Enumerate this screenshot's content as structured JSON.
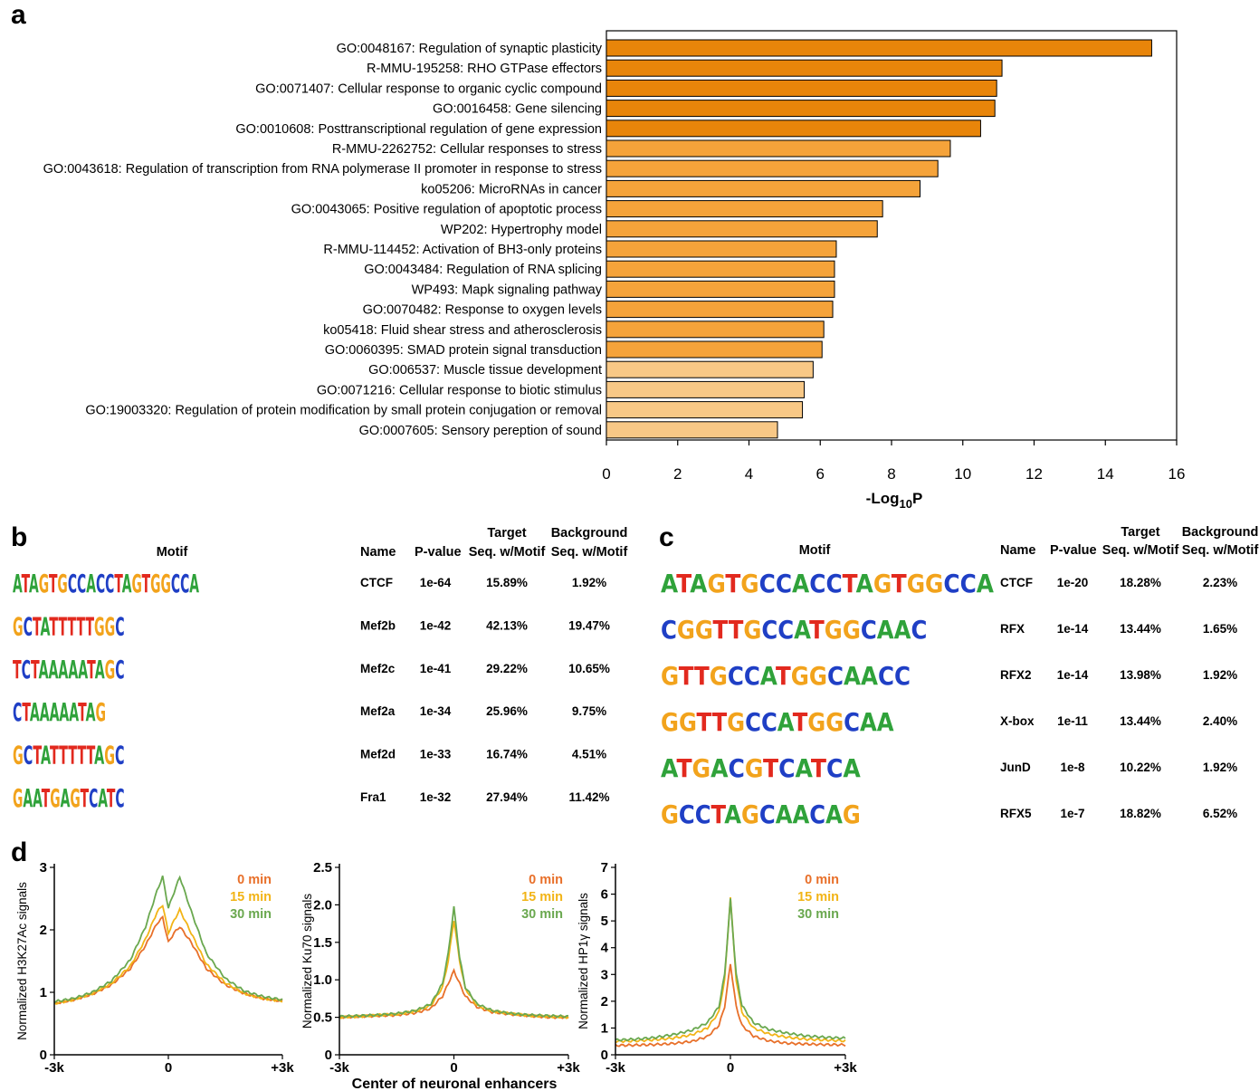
{
  "panel_a": {
    "letter": "a",
    "chart_data": {
      "type": "bar",
      "orientation": "horizontal",
      "xlabel": "-Log",
      "xlabel_sub": "10",
      "xlabel_tail": "P",
      "xlim": [
        0,
        16
      ],
      "xticks": [
        "0",
        "2",
        "4",
        "6",
        "8",
        "10",
        "12",
        "14",
        "16"
      ],
      "categories": [
        "GO:0048167: Regulation of synaptic plasticity",
        "R-MMU-195258: RHO GTPase effectors",
        "GO:0071407: Cellular response to organic cyclic compound",
        "GO:0016458: Gene silencing",
        "GO:0010608: Posttranscriptional regulation of gene expression",
        "R-MMU-2262752: Cellular responses to stress",
        "GO:0043618: Regulation of transcription from RNA polymerase II promoter in response to stress",
        "ko05206: MicroRNAs in cancer",
        "GO:0043065: Positive regulation of apoptotic process",
        "WP202: Hypertrophy model",
        "R-MMU-114452: Activation of BH3-only proteins",
        "GO:0043484: Regulation of RNA splicing",
        "WP493: Mapk signaling pathway",
        "GO:0070482: Response to oxygen levels",
        "ko05418: Fluid shear stress and atherosclerosis",
        "GO:0060395: SMAD protein signal transduction",
        "GO:006537: Muscle tissue development",
        "GO:0071216: Cellular response to biotic stimulus",
        "GO:19003320: Regulation of protein modification by small protein conjugation or removal",
        "GO:0007605: Sensory pereption of sound"
      ],
      "values": [
        15.3,
        11.1,
        10.95,
        10.9,
        10.5,
        9.65,
        9.3,
        8.8,
        7.75,
        7.6,
        6.45,
        6.4,
        6.4,
        6.35,
        6.1,
        6.05,
        5.8,
        5.55,
        5.5,
        4.8
      ],
      "colors": [
        "#E8850A",
        "#E8850A",
        "#E8850A",
        "#E8850A",
        "#E8850A",
        "#F5A33A",
        "#F5A33A",
        "#F5A33A",
        "#F5A33A",
        "#F5A33A",
        "#F5A33A",
        "#F5A33A",
        "#F5A33A",
        "#F5A33A",
        "#F5A33A",
        "#F5A33A",
        "#F8C886",
        "#F8C886",
        "#F8C886",
        "#F8C886"
      ]
    }
  },
  "panel_b": {
    "letter": "b",
    "headers": {
      "motif": "Motif",
      "name": "Name",
      "pvalue": "P-value",
      "target1": "Target",
      "target2": "Seq. w/Motif",
      "bg1": "Background",
      "bg2": "Seq. w/Motif"
    },
    "rows": [
      {
        "motif": "ATAGTGCCACCTAGTGGCCA",
        "name": "CTCF",
        "pvalue": "1e-64",
        "target": "15.89%",
        "background": "1.92%"
      },
      {
        "motif": "GCTATTTTTGGC",
        "name": "Mef2b",
        "pvalue": "1e-42",
        "target": "42.13%",
        "background": "19.47%"
      },
      {
        "motif": "TCTAAAAATAGC",
        "name": "Mef2c",
        "pvalue": "1e-41",
        "target": "29.22%",
        "background": "10.65%"
      },
      {
        "motif": "CTAAAAATAG",
        "name": "Mef2a",
        "pvalue": "1e-34",
        "target": "25.96%",
        "background": "9.75%"
      },
      {
        "motif": "GCTATTTTTAGC",
        "name": "Mef2d",
        "pvalue": "1e-33",
        "target": "16.74%",
        "background": "4.51%"
      },
      {
        "motif": "GAATGAGTCATC",
        "name": "Fra1",
        "pvalue": "1e-32",
        "target": "27.94%",
        "background": "11.42%"
      }
    ]
  },
  "panel_c": {
    "letter": "c",
    "headers": {
      "motif": "Motif",
      "name": "Name",
      "pvalue": "P-value",
      "target1": "Target",
      "target2": "Seq. w/Motif",
      "bg1": "Background",
      "bg2": "Seq. w/Motif"
    },
    "rows": [
      {
        "motif": "ATAGTGCCACCTAGTGGCCA",
        "name": "CTCF",
        "pvalue": "1e-20",
        "target": "18.28%",
        "background": "2.23%"
      },
      {
        "motif": "CGGTTGCCATGGCAAC",
        "name": "RFX",
        "pvalue": "1e-14",
        "target": "13.44%",
        "background": "1.65%"
      },
      {
        "motif": "GTTGCCATGGCAACC",
        "name": "RFX2",
        "pvalue": "1e-14",
        "target": "13.98%",
        "background": "1.92%"
      },
      {
        "motif": "GGTTGCCATGGCAA",
        "name": "X-box",
        "pvalue": "1e-11",
        "target": "13.44%",
        "background": "2.40%"
      },
      {
        "motif": "ATGACGTCATCA",
        "name": "JunD",
        "pvalue": "1e-8",
        "target": "10.22%",
        "background": "1.92%"
      },
      {
        "motif": "GCCTAGCAACAG",
        "name": "RFX5",
        "pvalue": "1e-7",
        "target": "18.82%",
        "background": "6.52%"
      }
    ]
  },
  "panel_d": {
    "letter": "d",
    "shared_xlabel": "Center of neuronal enhancers",
    "legend": [
      "0 min",
      "15 min",
      "30 min"
    ],
    "series_colors": [
      "#E8702A",
      "#F2B417",
      "#6AA84F"
    ],
    "chart_data": [
      {
        "type": "line",
        "ylabel": "Normalized H3K27Ac signals",
        "ylim": [
          0,
          3
        ],
        "yticks": [
          "0",
          "1",
          "2",
          "3"
        ],
        "xticks": [
          "-3k",
          "0",
          "+3k"
        ],
        "x": [
          -3000,
          -2500,
          -2000,
          -1500,
          -1000,
          -600,
          -300,
          -150,
          0,
          150,
          300,
          600,
          1000,
          1500,
          2000,
          2500,
          3000
        ],
        "series": [
          {
            "name": "0 min",
            "values": [
              0.82,
              0.88,
              0.97,
              1.12,
              1.38,
              1.75,
              2.1,
              2.2,
              1.8,
              1.95,
              2.05,
              1.8,
              1.38,
              1.12,
              0.98,
              0.9,
              0.86
            ]
          },
          {
            "name": "15 min",
            "values": [
              0.82,
              0.88,
              0.98,
              1.14,
              1.42,
              1.85,
              2.28,
              2.4,
              1.95,
              2.15,
              2.32,
              1.95,
              1.45,
              1.15,
              0.98,
              0.9,
              0.86
            ]
          },
          {
            "name": "30 min",
            "values": [
              0.85,
              0.9,
              1.0,
              1.18,
              1.52,
              2.05,
              2.62,
              2.85,
              2.35,
              2.6,
              2.85,
              2.3,
              1.62,
              1.22,
              1.02,
              0.93,
              0.88
            ]
          }
        ]
      },
      {
        "type": "line",
        "ylabel": "Normalized Ku70 signals",
        "ylim": [
          0,
          2.5
        ],
        "yticks": [
          "0",
          "0.5",
          "1.0",
          "1.5",
          "2.0",
          "2.5"
        ],
        "xticks": [
          "-3k",
          "0",
          "+3k"
        ],
        "x": [
          -3000,
          -2500,
          -2000,
          -1500,
          -1000,
          -600,
          -300,
          -150,
          0,
          150,
          300,
          600,
          1000,
          1500,
          2000,
          2500,
          3000
        ],
        "series": [
          {
            "name": "0 min",
            "values": [
              0.5,
              0.51,
              0.52,
              0.53,
              0.56,
              0.62,
              0.78,
              0.95,
              1.12,
              0.95,
              0.78,
              0.64,
              0.57,
              0.54,
              0.52,
              0.5,
              0.5
            ]
          },
          {
            "name": "15 min",
            "values": [
              0.5,
              0.51,
              0.53,
              0.54,
              0.58,
              0.66,
              0.9,
              1.25,
              1.8,
              1.25,
              0.88,
              0.66,
              0.58,
              0.55,
              0.52,
              0.51,
              0.5
            ]
          },
          {
            "name": "30 min",
            "values": [
              0.51,
              0.52,
              0.53,
              0.55,
              0.59,
              0.68,
              0.95,
              1.35,
              1.97,
              1.3,
              0.9,
              0.68,
              0.59,
              0.55,
              0.53,
              0.52,
              0.51
            ]
          }
        ]
      },
      {
        "type": "line",
        "ylabel": "Normalized HP1γ signals",
        "ylim": [
          0,
          7
        ],
        "yticks": [
          "0",
          "1",
          "2",
          "3",
          "4",
          "5",
          "6",
          "7"
        ],
        "xticks": [
          "-3k",
          "0",
          "+3k"
        ],
        "x": [
          -3000,
          -2500,
          -2000,
          -1500,
          -1000,
          -600,
          -300,
          -150,
          0,
          150,
          300,
          600,
          1000,
          1500,
          2000,
          2500,
          3000
        ],
        "series": [
          {
            "name": "0 min",
            "values": [
              0.35,
              0.36,
              0.38,
              0.42,
              0.5,
              0.68,
              1.1,
              1.8,
              3.4,
              1.8,
              1.1,
              0.7,
              0.52,
              0.43,
              0.4,
              0.38,
              0.37
            ]
          },
          {
            "name": "15 min",
            "values": [
              0.5,
              0.52,
              0.56,
              0.62,
              0.75,
              1.0,
              1.6,
              2.8,
              5.9,
              2.8,
              1.6,
              1.0,
              0.78,
              0.65,
              0.58,
              0.55,
              0.52
            ]
          },
          {
            "name": "30 min",
            "values": [
              0.55,
              0.58,
              0.64,
              0.75,
              0.92,
              1.2,
              1.8,
              3.0,
              5.8,
              3.0,
              1.85,
              1.2,
              0.95,
              0.8,
              0.7,
              0.65,
              0.62
            ]
          }
        ]
      }
    ]
  }
}
